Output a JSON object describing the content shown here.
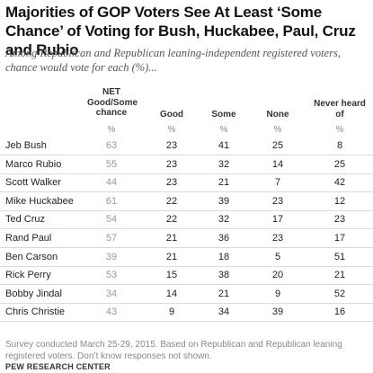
{
  "title": "Majorities of GOP Voters See At Least ‘Some Chance’ of Voting for Bush, Huckabee, Paul, Cruz and Rubio",
  "subtitle": "Among Republican and Republican leaning-independent registered voters, chance would vote for each (%)...",
  "columns": {
    "net": "NET Good/Some chance",
    "good": "Good",
    "some": "Some",
    "none": "None",
    "never": "Never heard of"
  },
  "pct_symbol": "%",
  "rows": [
    {
      "name": "Jeb Bush",
      "net": "63",
      "good": "23",
      "some": "41",
      "none": "25",
      "never": "8"
    },
    {
      "name": "Marco Rubio",
      "net": "55",
      "good": "23",
      "some": "32",
      "none": "14",
      "never": "25"
    },
    {
      "name": "Scott Walker",
      "net": "44",
      "good": "23",
      "some": "21",
      "none": "7",
      "never": "42"
    },
    {
      "name": "Mike Huckabee",
      "net": "61",
      "good": "22",
      "some": "39",
      "none": "23",
      "never": "12"
    },
    {
      "name": "Ted Cruz",
      "net": "54",
      "good": "22",
      "some": "32",
      "none": "17",
      "never": "23"
    },
    {
      "name": "Rand Paul",
      "net": "57",
      "good": "21",
      "some": "36",
      "none": "23",
      "never": "17"
    },
    {
      "name": "Ben Carson",
      "net": "39",
      "good": "21",
      "some": "18",
      "none": "5",
      "never": "51"
    },
    {
      "name": "Rick Perry",
      "net": "53",
      "good": "15",
      "some": "38",
      "none": "20",
      "never": "21"
    },
    {
      "name": "Bobby Jindal",
      "net": "34",
      "good": "14",
      "some": "21",
      "none": "9",
      "never": "52"
    },
    {
      "name": "Chris Christie",
      "net": "43",
      "good": "9",
      "some": "34",
      "none": "39",
      "never": "16"
    }
  ],
  "note": "Survey conducted March 25-29, 2015. Based on Republican and Republican leaning registered voters. Don’t know responses not shown.",
  "source": "PEW RESEARCH CENTER"
}
